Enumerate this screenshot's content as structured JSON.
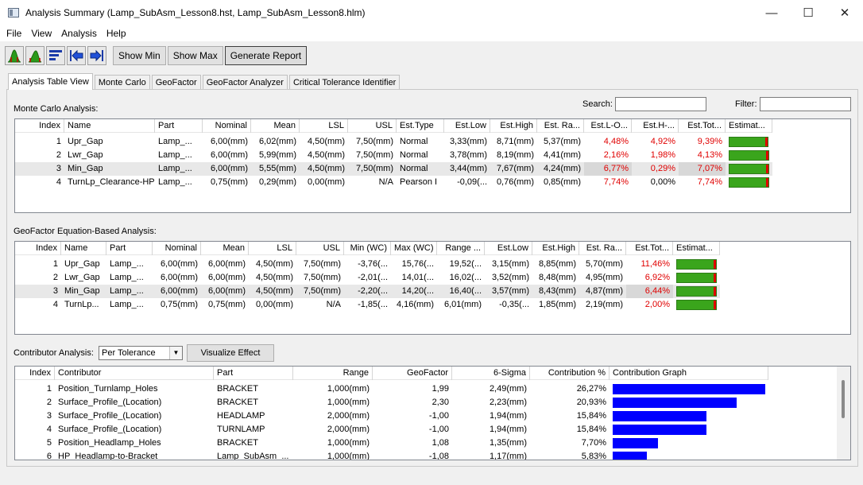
{
  "window": {
    "title": "Analysis Summary (Lamp_SubAsm_Lesson8.hst, Lamp_SubAsm_Lesson8.hlm)",
    "minimize": "—",
    "maximize": "☐",
    "close": "✕"
  },
  "menu": [
    "File",
    "View",
    "Analysis",
    "Help"
  ],
  "toolbar": {
    "icons": [
      "normal-distribution-icon",
      "distribution-shift-icon",
      "sort-bars-icon",
      "back-arrow-icon",
      "forward-arrow-icon"
    ],
    "show_min": "Show Min",
    "show_max": "Show Max",
    "generate_report": "Generate Report"
  },
  "tabs": [
    "Analysis Table View",
    "Monte Carlo",
    "GeoFactor",
    "GeoFactor Analyzer",
    "Critical Tolerance Identifier"
  ],
  "search_label": "Search:",
  "filter_label": "Filter:",
  "monte_carlo": {
    "label": "Monte Carlo Analysis:",
    "columns": [
      "Index",
      "Name",
      "Part",
      "Nominal",
      "Mean",
      "LSL",
      "USL",
      "Est.Type",
      "Est.Low",
      "Est.High",
      "Est. Ra...",
      "Est.L-O...",
      "Est.H-...",
      "Est.Tot...",
      "Estimat..."
    ],
    "rows": [
      {
        "index": "1",
        "name": "Upr_Gap",
        "part": "Lamp_...",
        "nominal": "6,00(mm)",
        "mean": "6,02(mm)",
        "lsl": "4,50(mm)",
        "usl": "7,50(mm)",
        "type": "Normal",
        "low": "3,33(mm)",
        "high": "8,71(mm)",
        "range": "5,37(mm)",
        "lo": "4,48%",
        "ho": "4,92%",
        "tot": "9,39%",
        "bar": 0.9
      },
      {
        "index": "2",
        "name": "Lwr_Gap",
        "part": "Lamp_...",
        "nominal": "6,00(mm)",
        "mean": "5,99(mm)",
        "lsl": "4,50(mm)",
        "usl": "7,50(mm)",
        "type": "Normal",
        "low": "3,78(mm)",
        "high": "8,19(mm)",
        "range": "4,41(mm)",
        "lo": "2,16%",
        "ho": "1,98%",
        "tot": "4,13%",
        "bar": 0.96
      },
      {
        "index": "3",
        "name": "Min_Gap",
        "part": "Lamp_...",
        "nominal": "6,00(mm)",
        "mean": "5,55(mm)",
        "lsl": "4,50(mm)",
        "usl": "7,50(mm)",
        "type": "Normal",
        "low": "3,44(mm)",
        "high": "7,67(mm)",
        "range": "4,24(mm)",
        "lo": "6,77%",
        "ho": "0,29%",
        "tot": "7,07%",
        "bar": 0.96
      },
      {
        "index": "4",
        "name": "TurnLp_Clearance-HP",
        "part": "Lamp_...",
        "nominal": "0,75(mm)",
        "mean": "0,29(mm)",
        "lsl": "0,00(mm)",
        "usl": "N/A",
        "type": "Pearson I",
        "low": "-0,09(...",
        "high": "0,76(mm)",
        "range": "0,85(mm)",
        "lo": "7,74%",
        "ho": "0,00%",
        "tot": "7,74%",
        "bar": 0.92
      }
    ]
  },
  "geofactor": {
    "label": "GeoFactor Equation-Based Analysis:",
    "columns": [
      "Index",
      "Name",
      "Part",
      "Nominal",
      "Mean",
      "LSL",
      "USL",
      "Min (WC)",
      "Max (WC)",
      "Range ...",
      "Est.Low",
      "Est.High",
      "Est. Ra...",
      "Est.Tot...",
      "Estimat..."
    ],
    "rows": [
      {
        "index": "1",
        "name": "Upr_Gap",
        "part": "Lamp_...",
        "nominal": "6,00(mm)",
        "mean": "6,00(mm)",
        "lsl": "4,50(mm)",
        "usl": "7,50(mm)",
        "min": "-3,76(...",
        "max": "15,76(...",
        "range": "19,52(...",
        "low": "3,15(mm)",
        "high": "8,85(mm)",
        "erange": "5,70(mm)",
        "tot": "11,46%",
        "bar": 0.93
      },
      {
        "index": "2",
        "name": "Lwr_Gap",
        "part": "Lamp_...",
        "nominal": "6,00(mm)",
        "mean": "6,00(mm)",
        "lsl": "4,50(mm)",
        "usl": "7,50(mm)",
        "min": "-2,01(...",
        "max": "14,01(...",
        "range": "16,02(...",
        "low": "3,52(mm)",
        "high": "8,48(mm)",
        "erange": "4,95(mm)",
        "tot": "6,92%",
        "bar": 0.96
      },
      {
        "index": "3",
        "name": "Min_Gap",
        "part": "Lamp_...",
        "nominal": "6,00(mm)",
        "mean": "6,00(mm)",
        "lsl": "4,50(mm)",
        "usl": "7,50(mm)",
        "min": "-2,20(...",
        "max": "14,20(...",
        "range": "16,40(...",
        "low": "3,57(mm)",
        "high": "8,43(mm)",
        "erange": "4,87(mm)",
        "tot": "6,44%",
        "bar": 0.96
      },
      {
        "index": "4",
        "name": "TurnLp...",
        "part": "Lamp_...",
        "nominal": "0,75(mm)",
        "mean": "0,75(mm)",
        "lsl": "0,00(mm)",
        "usl": "N/A",
        "min": "-1,85(...",
        "max": "4,16(mm)",
        "range": "6,01(mm)",
        "low": "-0,35(...",
        "high": "1,85(mm)",
        "erange": "2,19(mm)",
        "tot": "2,00%",
        "bar": 0.98
      }
    ]
  },
  "contributor": {
    "label": "Contributor Analysis:",
    "mode": "Per Tolerance",
    "visualize": "Visualize Effect",
    "columns": [
      "Index",
      "Contributor",
      "Part",
      "Range",
      "GeoFactor",
      "6-Sigma",
      "Contribution %",
      "Contribution Graph"
    ],
    "rows": [
      {
        "index": "1",
        "contributor": "Position_Turnlamp_Holes",
        "part": "BRACKET",
        "range": "1,000(mm)",
        "geofactor": "1,99",
        "sigma": "2,49(mm)",
        "pct": "26,27%",
        "value": 26.27
      },
      {
        "index": "2",
        "contributor": "Surface_Profile_(Location)",
        "part": "BRACKET",
        "range": "1,000(mm)",
        "geofactor": "2,30",
        "sigma": "2,23(mm)",
        "pct": "20,93%",
        "value": 20.93
      },
      {
        "index": "3",
        "contributor": "Surface_Profile_(Location)",
        "part": "HEADLAMP",
        "range": "2,000(mm)",
        "geofactor": "-1,00",
        "sigma": "1,94(mm)",
        "pct": "15,84%",
        "value": 15.84
      },
      {
        "index": "4",
        "contributor": "Surface_Profile_(Location)",
        "part": "TURNLAMP",
        "range": "2,000(mm)",
        "geofactor": "-1,00",
        "sigma": "1,94(mm)",
        "pct": "15,84%",
        "value": 15.84
      },
      {
        "index": "5",
        "contributor": "Position_Headlamp_Holes",
        "part": "BRACKET",
        "range": "1,000(mm)",
        "geofactor": "1,08",
        "sigma": "1,35(mm)",
        "pct": "7,70%",
        "value": 7.7
      },
      {
        "index": "6",
        "contributor": "HP_Headlamp-to-Bracket",
        "part": "Lamp_SubAsm_...",
        "range": "1,000(mm)",
        "geofactor": "-1,08",
        "sigma": "1,17(mm)",
        "pct": "5,83%",
        "value": 5.83
      }
    ]
  },
  "colors": {
    "bar_green": "#3aa51c",
    "bar_red": "#e00000",
    "bar_blue": "#0000ff"
  }
}
